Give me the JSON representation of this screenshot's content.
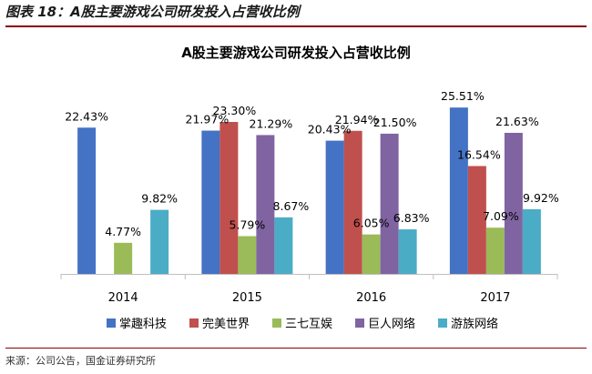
{
  "caption": "图表 18：A股主要游戏公司研发投入占营收比例",
  "source": "来源：公司公告，国金证券研究所",
  "colors": {
    "axis": "#bfbfbf",
    "caption_rule": "#8b0000",
    "series": [
      "#4472c4",
      "#c0504d",
      "#9bbb59",
      "#8064a2",
      "#4bacc6"
    ]
  },
  "chart_data": {
    "type": "bar",
    "title": "A股主要游戏公司研发投入占营收比例",
    "xlabel": "",
    "ylabel": "",
    "categories": [
      "2014",
      "2015",
      "2016",
      "2017"
    ],
    "series": [
      {
        "name": "掌趣科技",
        "values": [
          22.43,
          21.97,
          20.43,
          25.51
        ],
        "labels": [
          "22.43%",
          "21.97%",
          "20.43%",
          "25.51%"
        ]
      },
      {
        "name": "完美世界",
        "values": [
          null,
          23.3,
          21.94,
          16.54
        ],
        "labels": [
          "",
          "23.30%",
          "21.94%",
          "16.54%"
        ]
      },
      {
        "name": "三七互娱",
        "values": [
          4.77,
          5.79,
          6.05,
          7.09
        ],
        "labels": [
          "4.77%",
          "5.79%",
          "6.05%",
          "7.09%"
        ]
      },
      {
        "name": "巨人网络",
        "values": [
          null,
          21.29,
          21.5,
          21.63
        ],
        "labels": [
          "",
          "21.29%",
          "21.50%",
          "21.63%"
        ]
      },
      {
        "name": "游族网络",
        "values": [
          9.82,
          8.67,
          6.83,
          9.92
        ],
        "labels": [
          "9.82%",
          "8.67%",
          "6.83%",
          "9.92%"
        ]
      }
    ],
    "ylim": [
      0,
      30
    ],
    "grid": false,
    "legend": "bottom"
  }
}
